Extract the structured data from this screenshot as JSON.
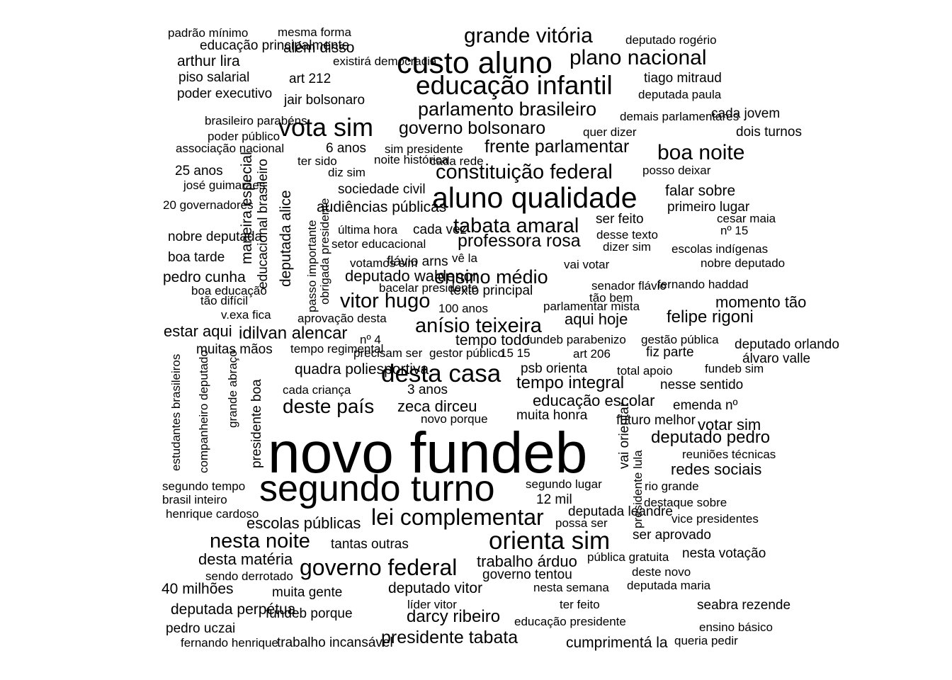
{
  "text_color": "#000000",
  "background": "#ffffff",
  "words": [
    "novo fundeb",
    "segundo turno",
    "custo aluno",
    "aluno qualidade",
    "educação infantil",
    "desta casa",
    "orienta sim",
    "lei complementar",
    "governo federal",
    "grande vitória",
    "vota sim",
    "plano nacional",
    "constituição federal",
    "tabata amaral",
    "nesta noite",
    "anísio teixeira",
    "vitor hugo",
    "parlamento brasileiro",
    "deste país",
    "ensino médio",
    "boa noite",
    "governo bolsonaro",
    "frente parlamentar",
    "professora rosa",
    "presidente tabata",
    "idilvan alencar",
    "tempo integral",
    "darcy ribeiro",
    "deputado pedro",
    "felipe rigoni",
    "educação escolar",
    "escolas públicas",
    "redes sociais",
    "deputado waldenor",
    "zeca dirceu",
    "trabalho árduo",
    "desta matéria",
    "estar aqui",
    "aqui hoje",
    "momento tão",
    "votar sim",
    "falar sobre",
    "cumprimentá la",
    "deputado vitor",
    "deputada perpétua",
    "pedro cunha",
    "arthur lira",
    "além disso",
    "audiências públicas",
    "sociedade civil",
    "texto principal",
    "primeiro lugar",
    "quadra poliesportiva",
    "seabra rezende",
    "emenda nº",
    "ser aprovado",
    "futuro melhor",
    "nesta votação",
    "40 milhões",
    "muitas mãos",
    "padrão mínimo",
    "mesma forma",
    "deputado rogério",
    "educação principalmente",
    "existirá democracia",
    "piso salarial",
    "art 212",
    "tiago mitraud",
    "poder executivo",
    "jair bolsonaro",
    "deputada paula",
    "brasileiro parabéns",
    "demais parlamentares",
    "cada jovem",
    "poder público",
    "quer dizer",
    "dois turnos",
    "associação nacional",
    "6 anos",
    "sim presidente",
    "ter sido",
    "noite histórica",
    "cada rede",
    "25 anos",
    "diz sim",
    "posso deixar",
    "josé guimarães",
    "20 governadores",
    "ser feito",
    "cesar maia",
    "nobre deputada",
    "última hora",
    "cada vez",
    "desse texto",
    "nº 15",
    "setor educacional",
    "dizer sim",
    "escolas indígenas",
    "boa tarde",
    "votamos sim",
    "flávio arns",
    "vê la",
    "vai votar",
    "nobre deputado",
    "bacelar presidente",
    "senador flávio",
    "fernando haddad",
    "boa educação",
    "tão difícil",
    "tão bem",
    "100 anos",
    "parlamentar mista",
    "v.exa fica",
    "aprovação desta",
    "fundeb parabenizo",
    "gestão pública",
    "nº 4",
    "tempo todo",
    "deputado orlando",
    "tempo regimental",
    "precisam ser",
    "gestor público",
    "15 15",
    "art 206",
    "fiz parte",
    "álvaro valle",
    "psb orienta",
    "total apoio",
    "fundeb sim",
    "cada criança",
    "3 anos",
    "nesse sentido",
    "muita honra",
    "novo porque",
    "reuniões técnicas",
    "segundo tempo",
    "segundo lugar",
    "rio grande",
    "brasil inteiro",
    "12 mil",
    "destaque sobre",
    "henrique cardoso",
    "deputada leandre",
    "possa ser",
    "vice presidentes",
    "tantas outras",
    "pública gratuita",
    "sendo derrotado",
    "governo tentou",
    "deste novo",
    "nesta semana",
    "deputada maria",
    "muita gente",
    "líder vitor",
    "ter feito",
    "fundeb porque",
    "educação presidente",
    "pedro uczai",
    "ensino básico",
    "fernando henrique",
    "trabalho incansável",
    "queria pedir",
    "deputada alice",
    "maneira especial",
    "educacional brasileiro",
    "passo importante",
    "obrigada presidente",
    "estudantes brasileiros",
    "companheiro deputado",
    "grande abraço",
    "presidente boa",
    "vai orientar",
    "presidente lula"
  ]
}
